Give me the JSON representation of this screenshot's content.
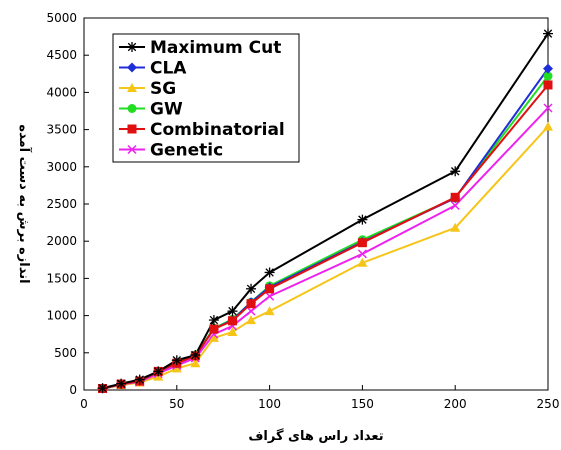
{
  "chart_data": {
    "type": "line",
    "xlabel": "تعداد راس های گراف",
    "ylabel": "اندازه برش به دست آمده",
    "xlim": [
      0,
      250
    ],
    "ylim": [
      0,
      5000
    ],
    "xticks": [
      "0",
      "50",
      "100",
      "150",
      "200",
      "250"
    ],
    "yticks": [
      "0",
      "500",
      "1000",
      "1500",
      "2000",
      "2500",
      "3000",
      "3500",
      "4000",
      "4500",
      "5000"
    ],
    "grid": false,
    "legend_position": "top-left",
    "series": [
      {
        "name": "Maximum Cut",
        "color": "#000000",
        "marker": "star",
        "x": [
          10,
          20,
          30,
          40,
          50,
          60,
          70,
          80,
          90,
          100,
          150,
          200,
          250
        ],
        "y": [
          25,
          85,
          140,
          250,
          400,
          470,
          940,
          1060,
          1360,
          1580,
          2290,
          2940,
          4790
        ]
      },
      {
        "name": "CLA",
        "color": "#1f2fd8",
        "marker": "diamond",
        "x": [
          10,
          20,
          30,
          40,
          50,
          60,
          70,
          80,
          90,
          100,
          150,
          200,
          250
        ],
        "y": [
          20,
          80,
          120,
          250,
          360,
          460,
          820,
          940,
          1180,
          1380,
          1990,
          2580,
          4320
        ]
      },
      {
        "name": "SG",
        "color": "#f5c518",
        "marker": "triangle",
        "x": [
          10,
          20,
          30,
          40,
          50,
          60,
          70,
          80,
          90,
          100,
          150,
          200,
          250
        ],
        "y": [
          15,
          65,
          100,
          180,
          290,
          360,
          700,
          780,
          940,
          1060,
          1710,
          2180,
          3540
        ]
      },
      {
        "name": "GW",
        "color": "#22dd22",
        "marker": "circle",
        "x": [
          10,
          20,
          30,
          40,
          50,
          60,
          70,
          80,
          90,
          100,
          150,
          200,
          250
        ],
        "y": [
          20,
          80,
          120,
          250,
          360,
          470,
          830,
          950,
          1180,
          1400,
          2020,
          2580,
          4220
        ]
      },
      {
        "name": "Combinatorial",
        "color": "#e01010",
        "marker": "square",
        "x": [
          10,
          20,
          30,
          40,
          50,
          60,
          70,
          80,
          90,
          100,
          150,
          200,
          250
        ],
        "y": [
          20,
          80,
          120,
          250,
          360,
          460,
          820,
          930,
          1160,
          1360,
          1980,
          2590,
          4100
        ]
      },
      {
        "name": "Genetic",
        "color": "#ee22ee",
        "marker": "x",
        "x": [
          10,
          20,
          30,
          40,
          50,
          60,
          70,
          80,
          90,
          100,
          150,
          200,
          250
        ],
        "y": [
          15,
          75,
          110,
          220,
          330,
          430,
          750,
          860,
          1060,
          1260,
          1830,
          2480,
          3790
        ]
      }
    ]
  }
}
